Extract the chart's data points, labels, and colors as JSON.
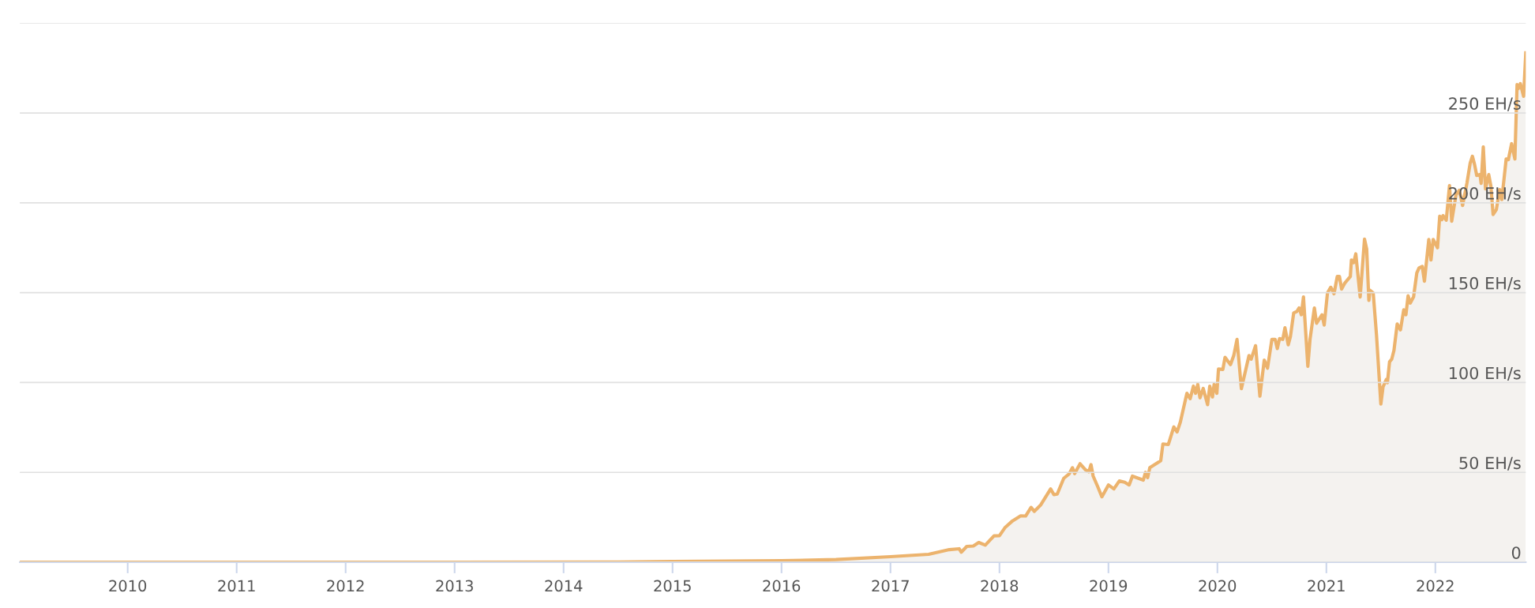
{
  "chart_data": {
    "type": "area",
    "xlim": [
      2009.01,
      2022.83
    ],
    "xticks": [
      2010,
      2011,
      2012,
      2013,
      2014,
      2015,
      2016,
      2017,
      2018,
      2019,
      2020,
      2021,
      2022
    ],
    "ylim": [
      0,
      300
    ],
    "yticks": [
      {
        "value": 0,
        "label": "0"
      },
      {
        "value": 50,
        "label": "50 EH/s"
      },
      {
        "value": 100,
        "label": "100 EH/s"
      },
      {
        "value": 150,
        "label": "150 EH/s"
      },
      {
        "value": 200,
        "label": "200 EH/s"
      },
      {
        "value": 250,
        "label": "250 EH/s"
      },
      {
        "value": 300,
        "label": null
      }
    ],
    "grid": "y",
    "series": [
      {
        "color": "#ecb36d",
        "x": [
          2009.01,
          2013.0,
          2014.5,
          2015.0,
          2016.0,
          2016.5,
          2017.0,
          2017.35,
          2017.54,
          2017.63,
          2017.65,
          2017.7,
          2017.76,
          2017.81,
          2017.87,
          2017.95,
          2018.0,
          2018.05,
          2018.12,
          2018.195,
          2018.24,
          2018.29,
          2018.32,
          2018.38,
          2018.47,
          2018.5,
          2018.53,
          2018.59,
          2018.64,
          2018.67,
          2018.69,
          2018.74,
          2018.79,
          2018.82,
          2018.84,
          2018.86,
          2018.9,
          2018.94,
          2019.0,
          2019.05,
          2019.1,
          2019.15,
          2019.19,
          2019.22,
          2019.32,
          2019.34,
          2019.36,
          2019.38,
          2019.48,
          2019.5,
          2019.55,
          2019.6,
          2019.63,
          2019.66,
          2019.72,
          2019.75,
          2019.78,
          2019.8,
          2019.82,
          2019.84,
          2019.87,
          2019.91,
          2019.93,
          2019.955,
          2019.97,
          2019.995,
          2020.01,
          2020.05,
          2020.07,
          2020.12,
          2020.15,
          2020.18,
          2020.22,
          2020.29,
          2020.31,
          2020.35,
          2020.39,
          2020.43,
          2020.46,
          2020.5,
          2020.53,
          2020.55,
          2020.57,
          2020.6,
          2020.62,
          2020.65,
          2020.67,
          2020.7,
          2020.73,
          2020.75,
          2020.77,
          2020.79,
          2020.83,
          2020.85,
          2020.89,
          2020.91,
          2020.96,
          2020.98,
          2021.01,
          2021.04,
          2021.07,
          2021.1,
          2021.12,
          2021.14,
          2021.17,
          2021.22,
          2021.23,
          2021.25,
          2021.27,
          2021.31,
          2021.35,
          2021.37,
          2021.39,
          2021.4,
          2021.43,
          2021.46,
          2021.5,
          2021.52,
          2021.55,
          2021.56,
          2021.58,
          2021.6,
          2021.62,
          2021.65,
          2021.68,
          2021.71,
          2021.73,
          2021.75,
          2021.77,
          2021.8,
          2021.83,
          2021.85,
          2021.88,
          2021.9,
          2021.94,
          2021.96,
          2021.98,
          2022.02,
          2022.04,
          2022.06,
          2022.07,
          2022.1,
          2022.13,
          2022.15,
          2022.19,
          2022.22,
          2022.25,
          2022.29,
          2022.32,
          2022.34,
          2022.36,
          2022.38,
          2022.41,
          2022.42,
          2022.44,
          2022.46,
          2022.49,
          2022.51,
          2022.53,
          2022.56,
          2022.59,
          2022.61,
          2022.65,
          2022.67,
          2022.7,
          2022.73,
          2022.75,
          2022.76,
          2022.78,
          2022.81,
          2022.83
        ],
        "values": [
          0,
          0,
          0.1,
          0.4,
          0.8,
          1.5,
          3.1,
          4.4,
          7.0,
          7.5,
          5.6,
          8.8,
          9.0,
          11,
          9.5,
          14.7,
          14.8,
          19.2,
          23,
          25.8,
          25.7,
          30.5,
          28.3,
          32,
          40.8,
          37.6,
          37.9,
          46.7,
          49.2,
          52.6,
          49.3,
          54.8,
          51.4,
          50.3,
          54.3,
          47.9,
          42.3,
          36.4,
          43,
          40.8,
          45.2,
          44.5,
          43,
          47.9,
          45.7,
          50,
          47.1,
          52.6,
          56.5,
          65.8,
          65.5,
          75.3,
          72.5,
          78,
          94,
          91,
          98,
          94,
          99,
          91.5,
          96.7,
          87.7,
          98,
          92,
          99,
          94,
          107.5,
          107.3,
          114,
          110,
          115,
          124,
          96.6,
          115,
          113,
          120.5,
          92.4,
          112.5,
          108,
          124,
          124,
          118.9,
          124.4,
          124,
          130.5,
          121,
          125.6,
          138.7,
          139.6,
          141.5,
          137.7,
          147.6,
          109,
          124,
          141.5,
          133,
          137.7,
          132,
          149.8,
          153,
          149.4,
          159,
          159,
          152,
          155.4,
          159,
          168.2,
          166.7,
          171.6,
          147.6,
          179.8,
          174.2,
          145.7,
          151.3,
          149.8,
          126.5,
          88,
          97.6,
          101.7,
          99.9,
          111.6,
          113,
          117.8,
          132.6,
          129.3,
          140.5,
          137.7,
          148.3,
          144.2,
          147.6,
          161,
          163.7,
          164.6,
          156.4,
          179.6,
          168.2,
          179.6,
          175,
          192.5,
          190.6,
          192.9,
          190.3,
          209.6,
          189.8,
          204.6,
          207,
          198.5,
          211,
          222.2,
          225.9,
          221.3,
          215.2,
          215.7,
          210.8,
          231.1,
          207.8,
          215.7,
          209.2,
          193.5,
          196.3,
          207.4,
          201.8,
          224.4,
          224,
          232.9,
          224.4,
          265.8,
          263.4,
          266.3,
          259.3,
          283.5
        ]
      }
    ]
  }
}
